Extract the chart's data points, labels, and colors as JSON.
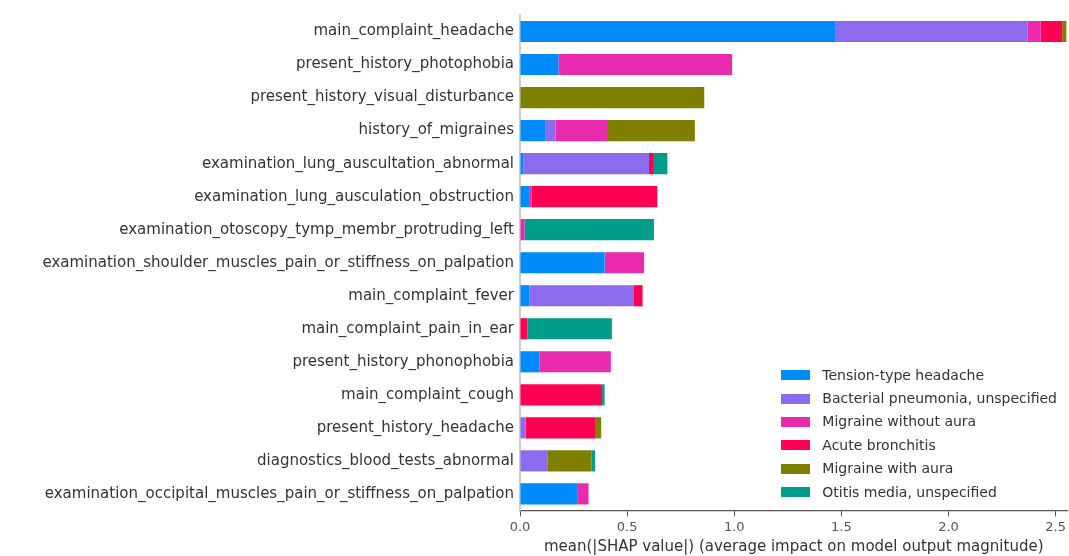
{
  "chart_data": {
    "type": "bar",
    "orientation": "horizontal",
    "stacked": true,
    "xlabel": "mean(|SHAP value|) (average impact on model output magnitude)",
    "categories": [
      "main_complaint_headache",
      "present_history_photophobia",
      "present_history_visual_disturbance",
      "history_of_migraines",
      "examination_lung_auscultation_abnormal",
      "examination_lung_ausculation_obstruction",
      "examination_otoscopy_tymp_membr_protruding_left",
      "examination_shoulder_muscles_pain_or_stiffness_on_palpation",
      "main_complaint_fever",
      "main_complaint_pain_in_ear",
      "present_history_phonophobia",
      "main_complaint_cough",
      "present_history_headache",
      "diagnostics_blood_tests_abnormal",
      "examination_occipital_muscles_pain_or_stiffness_on_palpation"
    ],
    "series": [
      {
        "name": "Tension-type headache",
        "color": "#008bfb",
        "values": [
          1.47,
          0.18,
          0,
          0.12,
          0.015,
          0.046,
          0,
          0.395,
          0.044,
          0,
          0.091,
          0,
          0,
          0,
          0.27
        ]
      },
      {
        "name": "Bacterial pneumonia, unspecified",
        "color": "#8b6cef",
        "values": [
          0.9,
          0,
          0,
          0.046,
          0.587,
          0,
          0,
          0,
          0.488,
          0,
          0,
          0,
          0.026,
          0.13,
          0
        ]
      },
      {
        "name": "Migraine without aura",
        "color": "#e92aad",
        "values": [
          0.06,
          0.81,
          0,
          0.24,
          0,
          0.009,
          0.021,
          0.184,
          0,
          0,
          0.333,
          0,
          0,
          0,
          0.05
        ]
      },
      {
        "name": "Acute bronchitis",
        "color": "#ff0052",
        "values": [
          0.1,
          0,
          0,
          0,
          0.023,
          0.586,
          0,
          0,
          0.04,
          0.035,
          0,
          0.383,
          0.324,
          0,
          0
        ]
      },
      {
        "name": "Migraine with aura",
        "color": "#808000",
        "values": [
          0.02,
          0,
          0.86,
          0.41,
          0,
          0,
          0,
          0,
          0,
          0,
          0,
          0,
          0.029,
          0.203,
          0
        ]
      },
      {
        "name": "Otitis media, unspecified",
        "color": "#009e8a",
        "values": [
          0,
          0,
          0,
          0,
          0.063,
          0,
          0.604,
          0,
          0,
          0.394,
          0,
          0.012,
          0,
          0.017,
          0
        ]
      }
    ],
    "xlim": [
      0,
      2.555
    ],
    "xticks": [
      {
        "value": 0,
        "label": "0.0"
      },
      {
        "value": 0.5,
        "label": "0.5"
      },
      {
        "value": 1,
        "label": "1.0"
      },
      {
        "value": 1.5,
        "label": "1.5"
      },
      {
        "value": 2,
        "label": "2.0"
      },
      {
        "value": 2.5,
        "label": "2.5"
      }
    ],
    "grid": false,
    "legend": "bottom right"
  }
}
